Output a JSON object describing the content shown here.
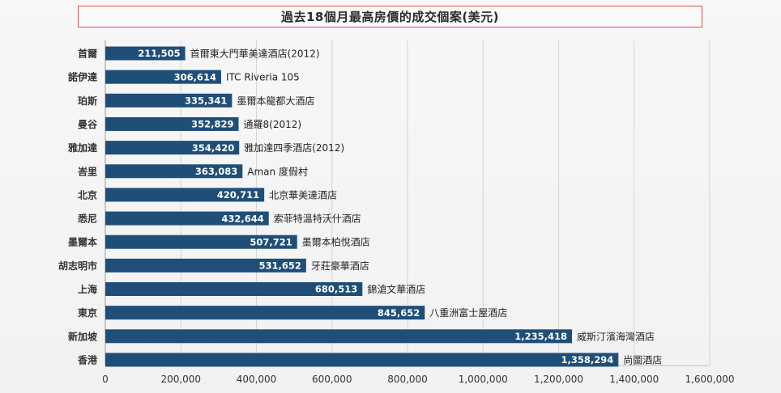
{
  "chart_data": {
    "type": "bar",
    "orientation": "horizontal",
    "title": "過去18個月最高房價的成交個案(美元)",
    "categories": [
      "首爾",
      "諾伊達",
      "珀斯",
      "曼谷",
      "雅加達",
      "峇里",
      "北京",
      "悉尼",
      "墨爾本",
      "胡志明市",
      "上海",
      "東京",
      "新加坡",
      "香港"
    ],
    "values": [
      211505,
      306614,
      335341,
      352829,
      354420,
      363083,
      420711,
      432644,
      507721,
      531652,
      680513,
      845652,
      1235418,
      1358294
    ],
    "value_labels": [
      "211,505",
      "306,614",
      "335,341",
      "352,829",
      "354,420",
      "363,083",
      "420,711",
      "432,644",
      "507,721",
      "531,652",
      "680,513",
      "845,652",
      "1,235,418",
      "1,358,294"
    ],
    "bar_labels": [
      "首爾東大門華美達酒店(2012)",
      "ITC Riveria 105",
      "墨爾本龍都大酒店",
      "通羅8(2012)",
      "雅加達四季酒店(2012)",
      "Aman 度假村",
      "北京華美達酒店",
      "索菲特溫特沃什酒店",
      "墨爾本柏悅酒店",
      "牙莊豪華酒店",
      "錦滄文華酒店",
      "八重洲富士屋酒店",
      "威斯汀濱海灣酒店",
      "尚圖酒店"
    ],
    "xlim": [
      0,
      1600000
    ],
    "x_ticks": [
      0,
      200000,
      400000,
      600000,
      800000,
      1000000,
      1200000,
      1400000,
      1600000
    ],
    "x_tick_labels": [
      "0",
      "200,000",
      "400,000",
      "600,000",
      "800,000",
      "1,000,000",
      "1,200,000",
      "1,400,000",
      "1,600,000"
    ],
    "grid": true,
    "bar_color": "#1f4e79"
  }
}
